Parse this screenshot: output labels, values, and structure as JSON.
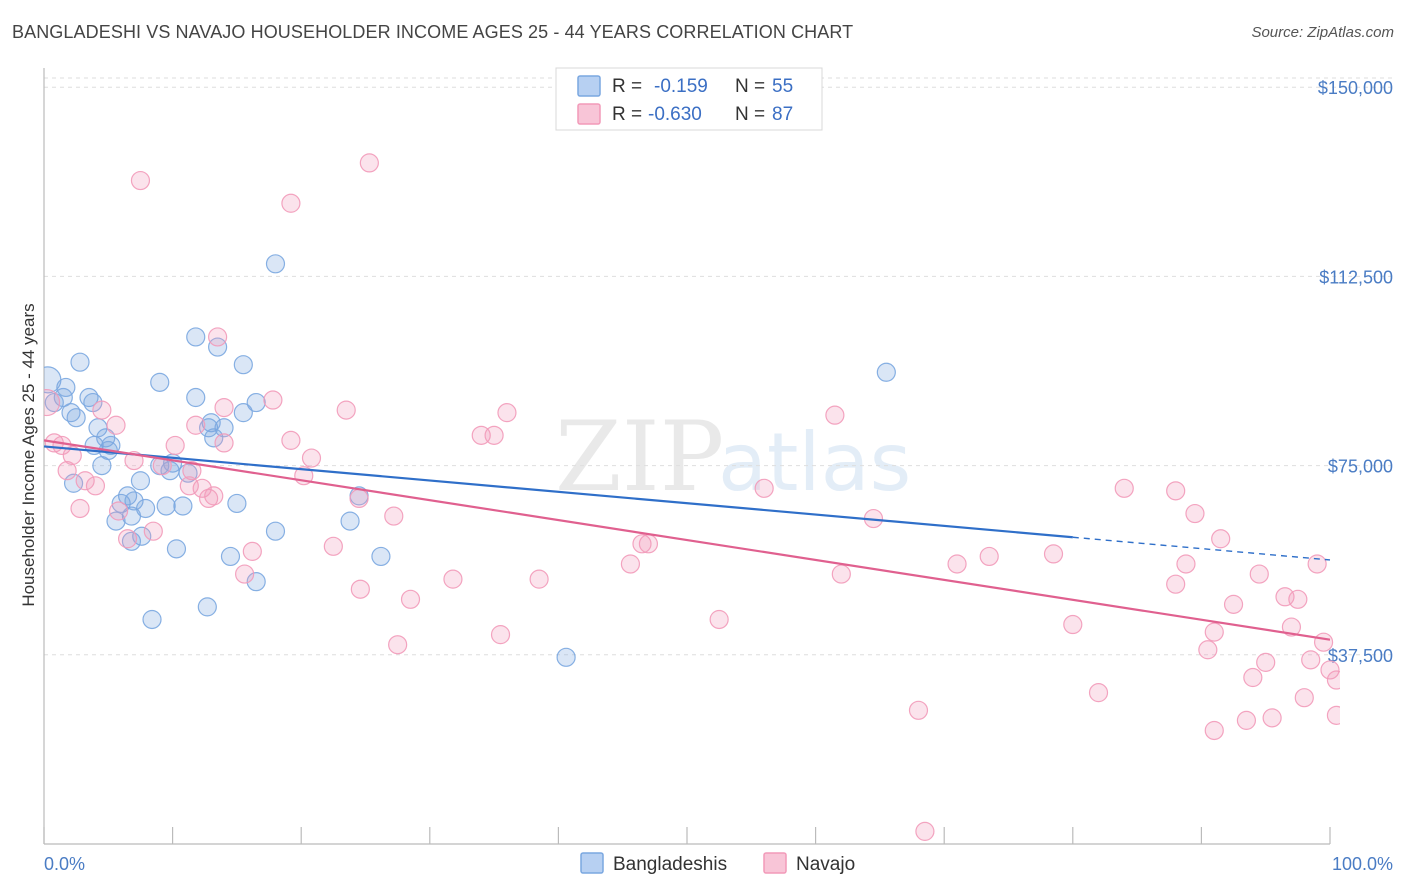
{
  "chart_data": {
    "type": "scatter",
    "title": "BANGLADESHI VS NAVAJO HOUSEHOLDER INCOME AGES 25 - 44 YEARS CORRELATION CHART",
    "source": "Source: ZipAtlas.com",
    "xlabel": "",
    "ylabel": "Householder Income Ages 25 - 44 years",
    "xlim": [
      0,
      100
    ],
    "ylim": [
      0,
      155000
    ],
    "x_tick_labels": [
      "0.0%",
      "100.0%"
    ],
    "y_ticks": [
      37500,
      75000,
      112500,
      150000
    ],
    "y_tick_labels": [
      "$37,500",
      "$75,000",
      "$112,500",
      "$150,000"
    ],
    "grid": true,
    "watermark": "ZIPatlas",
    "legend": {
      "position": "top-center",
      "entries": [
        {
          "series": "Bangladeshis",
          "r_label": "R =",
          "r_value": "-0.159",
          "n_label": "N =",
          "n_value": "55"
        },
        {
          "series": "Navajo",
          "r_label": "R =",
          "r_value": "-0.630",
          "n_label": "N =",
          "n_value": "87"
        }
      ]
    },
    "bottom_legend": [
      "Bangladeshis",
      "Navajo"
    ],
    "series": [
      {
        "name": "Bangladeshis",
        "color": "#7aa7e0",
        "line_color": "#2f6fc9",
        "trend": {
          "x0": 0,
          "y0": 78800,
          "x1": 80,
          "y1": 60800,
          "dash_to_x": 100,
          "dash_to_y": 56300
        },
        "points": [
          [
            0.3,
            92000
          ],
          [
            1.5,
            88500
          ],
          [
            0.8,
            87500
          ],
          [
            1.7,
            90500
          ],
          [
            2.8,
            95500
          ],
          [
            3.5,
            88500
          ],
          [
            2.1,
            85500
          ],
          [
            2.5,
            84500
          ],
          [
            3.8,
            87500
          ],
          [
            4.2,
            82500
          ],
          [
            3.9,
            79000
          ],
          [
            4.8,
            80500
          ],
          [
            5.2,
            79000
          ],
          [
            4.5,
            75000
          ],
          [
            5.0,
            78000
          ],
          [
            2.3,
            71500
          ],
          [
            9.0,
            91500
          ],
          [
            11.8,
            88500
          ],
          [
            11.8,
            100500
          ],
          [
            13.5,
            98500
          ],
          [
            15.5,
            95000
          ],
          [
            16.5,
            87500
          ],
          [
            15.5,
            85500
          ],
          [
            13.0,
            83500
          ],
          [
            12.8,
            82500
          ],
          [
            14.0,
            82500
          ],
          [
            13.2,
            80500
          ],
          [
            9.0,
            75000
          ],
          [
            9.8,
            74000
          ],
          [
            11.2,
            73500
          ],
          [
            10.0,
            75500
          ],
          [
            7.5,
            72000
          ],
          [
            6.5,
            69000
          ],
          [
            6.0,
            67500
          ],
          [
            7.0,
            68000
          ],
          [
            6.8,
            65000
          ],
          [
            5.6,
            64000
          ],
          [
            7.9,
            66500
          ],
          [
            9.5,
            67000
          ],
          [
            10.8,
            67000
          ],
          [
            15.0,
            67500
          ],
          [
            18.0,
            62000
          ],
          [
            7.6,
            61000
          ],
          [
            6.8,
            60000
          ],
          [
            10.3,
            58500
          ],
          [
            14.5,
            57000
          ],
          [
            16.5,
            52000
          ],
          [
            12.7,
            47000
          ],
          [
            8.4,
            44500
          ],
          [
            18.0,
            115000
          ],
          [
            24.5,
            69000
          ],
          [
            23.8,
            64000
          ],
          [
            26.2,
            57000
          ],
          [
            40.6,
            37000
          ],
          [
            65.5,
            93500
          ]
        ]
      },
      {
        "name": "Navajo",
        "color": "#f29ab9",
        "line_color": "#e0608f",
        "trend": {
          "x0": 0,
          "y0": 80000,
          "x1": 100,
          "y1": 40500
        },
        "points": [
          [
            0.2,
            87500
          ],
          [
            0.8,
            79500
          ],
          [
            1.4,
            79000
          ],
          [
            2.2,
            77000
          ],
          [
            1.8,
            74000
          ],
          [
            3.2,
            72000
          ],
          [
            4.0,
            71000
          ],
          [
            2.8,
            66500
          ],
          [
            5.8,
            66000
          ],
          [
            6.5,
            60500
          ],
          [
            4.5,
            86000
          ],
          [
            5.6,
            83000
          ],
          [
            7.0,
            76000
          ],
          [
            8.5,
            62000
          ],
          [
            9.2,
            75000
          ],
          [
            10.2,
            79000
          ],
          [
            11.5,
            74000
          ],
          [
            11.3,
            71000
          ],
          [
            12.3,
            70500
          ],
          [
            12.8,
            68500
          ],
          [
            13.2,
            69000
          ],
          [
            14.0,
            79500
          ],
          [
            11.8,
            83000
          ],
          [
            13.5,
            100500
          ],
          [
            14.0,
            86500
          ],
          [
            16.2,
            58000
          ],
          [
            15.6,
            53500
          ],
          [
            17.8,
            88000
          ],
          [
            19.2,
            80000
          ],
          [
            20.2,
            73000
          ],
          [
            20.8,
            76500
          ],
          [
            22.5,
            59000
          ],
          [
            23.5,
            86000
          ],
          [
            24.5,
            68500
          ],
          [
            24.6,
            50500
          ],
          [
            27.2,
            65000
          ],
          [
            27.5,
            39500
          ],
          [
            28.5,
            48500
          ],
          [
            31.8,
            52500
          ],
          [
            34.0,
            81000
          ],
          [
            35.0,
            81000
          ],
          [
            35.5,
            41500
          ],
          [
            36.0,
            85500
          ],
          [
            38.5,
            52500
          ],
          [
            45.6,
            55500
          ],
          [
            46.5,
            59500
          ],
          [
            47.0,
            59500
          ],
          [
            52.5,
            44500
          ],
          [
            56.0,
            70500
          ],
          [
            61.5,
            85000
          ],
          [
            62.0,
            53500
          ],
          [
            64.5,
            64500
          ],
          [
            68.0,
            26500
          ],
          [
            71.0,
            55500
          ],
          [
            73.5,
            57000
          ],
          [
            78.5,
            57500
          ],
          [
            80.0,
            43500
          ],
          [
            82.0,
            30000
          ],
          [
            84.0,
            70500
          ],
          [
            88.0,
            70000
          ],
          [
            88.0,
            51500
          ],
          [
            88.8,
            55500
          ],
          [
            89.5,
            65500
          ],
          [
            90.5,
            38500
          ],
          [
            91.0,
            42000
          ],
          [
            91.5,
            60500
          ],
          [
            91.0,
            22500
          ],
          [
            92.5,
            47500
          ],
          [
            93.5,
            24500
          ],
          [
            94.0,
            33000
          ],
          [
            94.5,
            53500
          ],
          [
            95.0,
            36000
          ],
          [
            95.5,
            25000
          ],
          [
            96.5,
            49000
          ],
          [
            97.0,
            43000
          ],
          [
            97.5,
            48500
          ],
          [
            98.0,
            29000
          ],
          [
            98.5,
            36500
          ],
          [
            99.0,
            55500
          ],
          [
            99.5,
            40000
          ],
          [
            100.0,
            34500
          ],
          [
            100.5,
            32500
          ],
          [
            100.5,
            25500
          ],
          [
            25.3,
            135000
          ],
          [
            7.5,
            131500
          ],
          [
            19.2,
            127000
          ],
          [
            68.5,
            2500
          ]
        ]
      }
    ]
  }
}
